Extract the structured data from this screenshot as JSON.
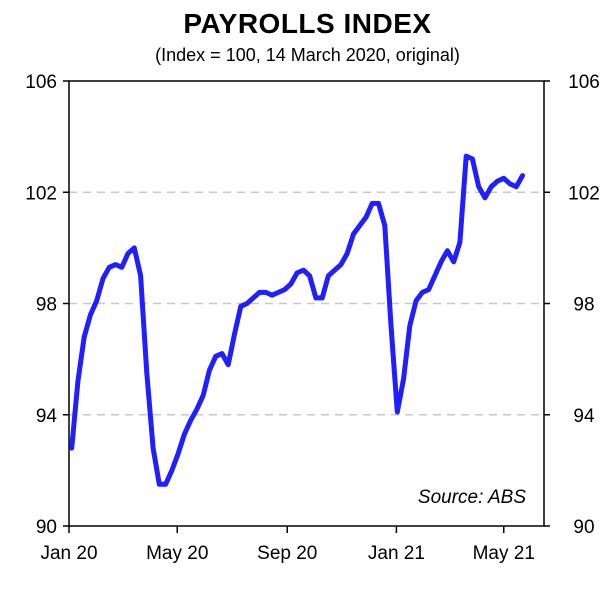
{
  "chart_data": {
    "type": "line",
    "title": "PAYROLLS INDEX",
    "subtitle": "(Index = 100, 14 March 2020, original)",
    "source": "Source: ABS",
    "ylim": [
      90,
      106
    ],
    "yticks": [
      90,
      94,
      98,
      102,
      106
    ],
    "xticks": [
      {
        "label": "Jan 20",
        "date": "2020-01-01"
      },
      {
        "label": "May 20",
        "date": "2020-05-01"
      },
      {
        "label": "Sep 20",
        "date": "2020-09-01"
      },
      {
        "label": "Jan 21",
        "date": "2021-01-01"
      },
      {
        "label": "May 21",
        "date": "2021-05-01"
      }
    ],
    "xlim": [
      "2020-01-01",
      "2021-06-15"
    ],
    "grid": "horizontal dashed",
    "line_color": "#1f1fff",
    "series": [
      {
        "points": [
          [
            "2020-01-04",
            92.8
          ],
          [
            "2020-01-11",
            95.2
          ],
          [
            "2020-01-18",
            96.8
          ],
          [
            "2020-01-25",
            97.6
          ],
          [
            "2020-02-01",
            98.1
          ],
          [
            "2020-02-08",
            98.9
          ],
          [
            "2020-02-15",
            99.3
          ],
          [
            "2020-02-22",
            99.4
          ],
          [
            "2020-02-29",
            99.3
          ],
          [
            "2020-03-07",
            99.8
          ],
          [
            "2020-03-14",
            100.0
          ],
          [
            "2020-03-21",
            99.0
          ],
          [
            "2020-03-28",
            95.5
          ],
          [
            "2020-04-04",
            92.8
          ],
          [
            "2020-04-11",
            91.5
          ],
          [
            "2020-04-18",
            91.5
          ],
          [
            "2020-04-25",
            92.0
          ],
          [
            "2020-05-02",
            92.6
          ],
          [
            "2020-05-09",
            93.3
          ],
          [
            "2020-05-16",
            93.8
          ],
          [
            "2020-05-23",
            94.2
          ],
          [
            "2020-05-30",
            94.7
          ],
          [
            "2020-06-06",
            95.6
          ],
          [
            "2020-06-13",
            96.1
          ],
          [
            "2020-06-20",
            96.2
          ],
          [
            "2020-06-27",
            95.8
          ],
          [
            "2020-07-04",
            96.9
          ],
          [
            "2020-07-11",
            97.9
          ],
          [
            "2020-07-18",
            98.0
          ],
          [
            "2020-07-25",
            98.2
          ],
          [
            "2020-08-01",
            98.4
          ],
          [
            "2020-08-08",
            98.4
          ],
          [
            "2020-08-15",
            98.3
          ],
          [
            "2020-08-22",
            98.4
          ],
          [
            "2020-08-29",
            98.5
          ],
          [
            "2020-09-05",
            98.7
          ],
          [
            "2020-09-12",
            99.1
          ],
          [
            "2020-09-19",
            99.2
          ],
          [
            "2020-09-26",
            99.0
          ],
          [
            "2020-10-03",
            98.2
          ],
          [
            "2020-10-10",
            98.2
          ],
          [
            "2020-10-17",
            99.0
          ],
          [
            "2020-10-24",
            99.2
          ],
          [
            "2020-10-31",
            99.4
          ],
          [
            "2020-11-07",
            99.8
          ],
          [
            "2020-11-14",
            100.5
          ],
          [
            "2020-11-21",
            100.8
          ],
          [
            "2020-11-28",
            101.1
          ],
          [
            "2020-12-05",
            101.6
          ],
          [
            "2020-12-12",
            101.6
          ],
          [
            "2020-12-19",
            100.8
          ],
          [
            "2020-12-26",
            97.2
          ],
          [
            "2021-01-02",
            94.1
          ],
          [
            "2021-01-09",
            95.3
          ],
          [
            "2021-01-16",
            97.2
          ],
          [
            "2021-01-23",
            98.1
          ],
          [
            "2021-01-30",
            98.4
          ],
          [
            "2021-02-06",
            98.5
          ],
          [
            "2021-02-13",
            99.0
          ],
          [
            "2021-02-20",
            99.5
          ],
          [
            "2021-02-27",
            99.9
          ],
          [
            "2021-03-06",
            99.5
          ],
          [
            "2021-03-13",
            100.2
          ],
          [
            "2021-03-20",
            103.3
          ],
          [
            "2021-03-27",
            103.2
          ],
          [
            "2021-04-03",
            102.2
          ],
          [
            "2021-04-10",
            101.8
          ],
          [
            "2021-04-17",
            102.2
          ],
          [
            "2021-04-24",
            102.4
          ],
          [
            "2021-05-01",
            102.5
          ],
          [
            "2021-05-08",
            102.3
          ],
          [
            "2021-05-15",
            102.2
          ],
          [
            "2021-05-22",
            102.6
          ]
        ]
      }
    ]
  }
}
